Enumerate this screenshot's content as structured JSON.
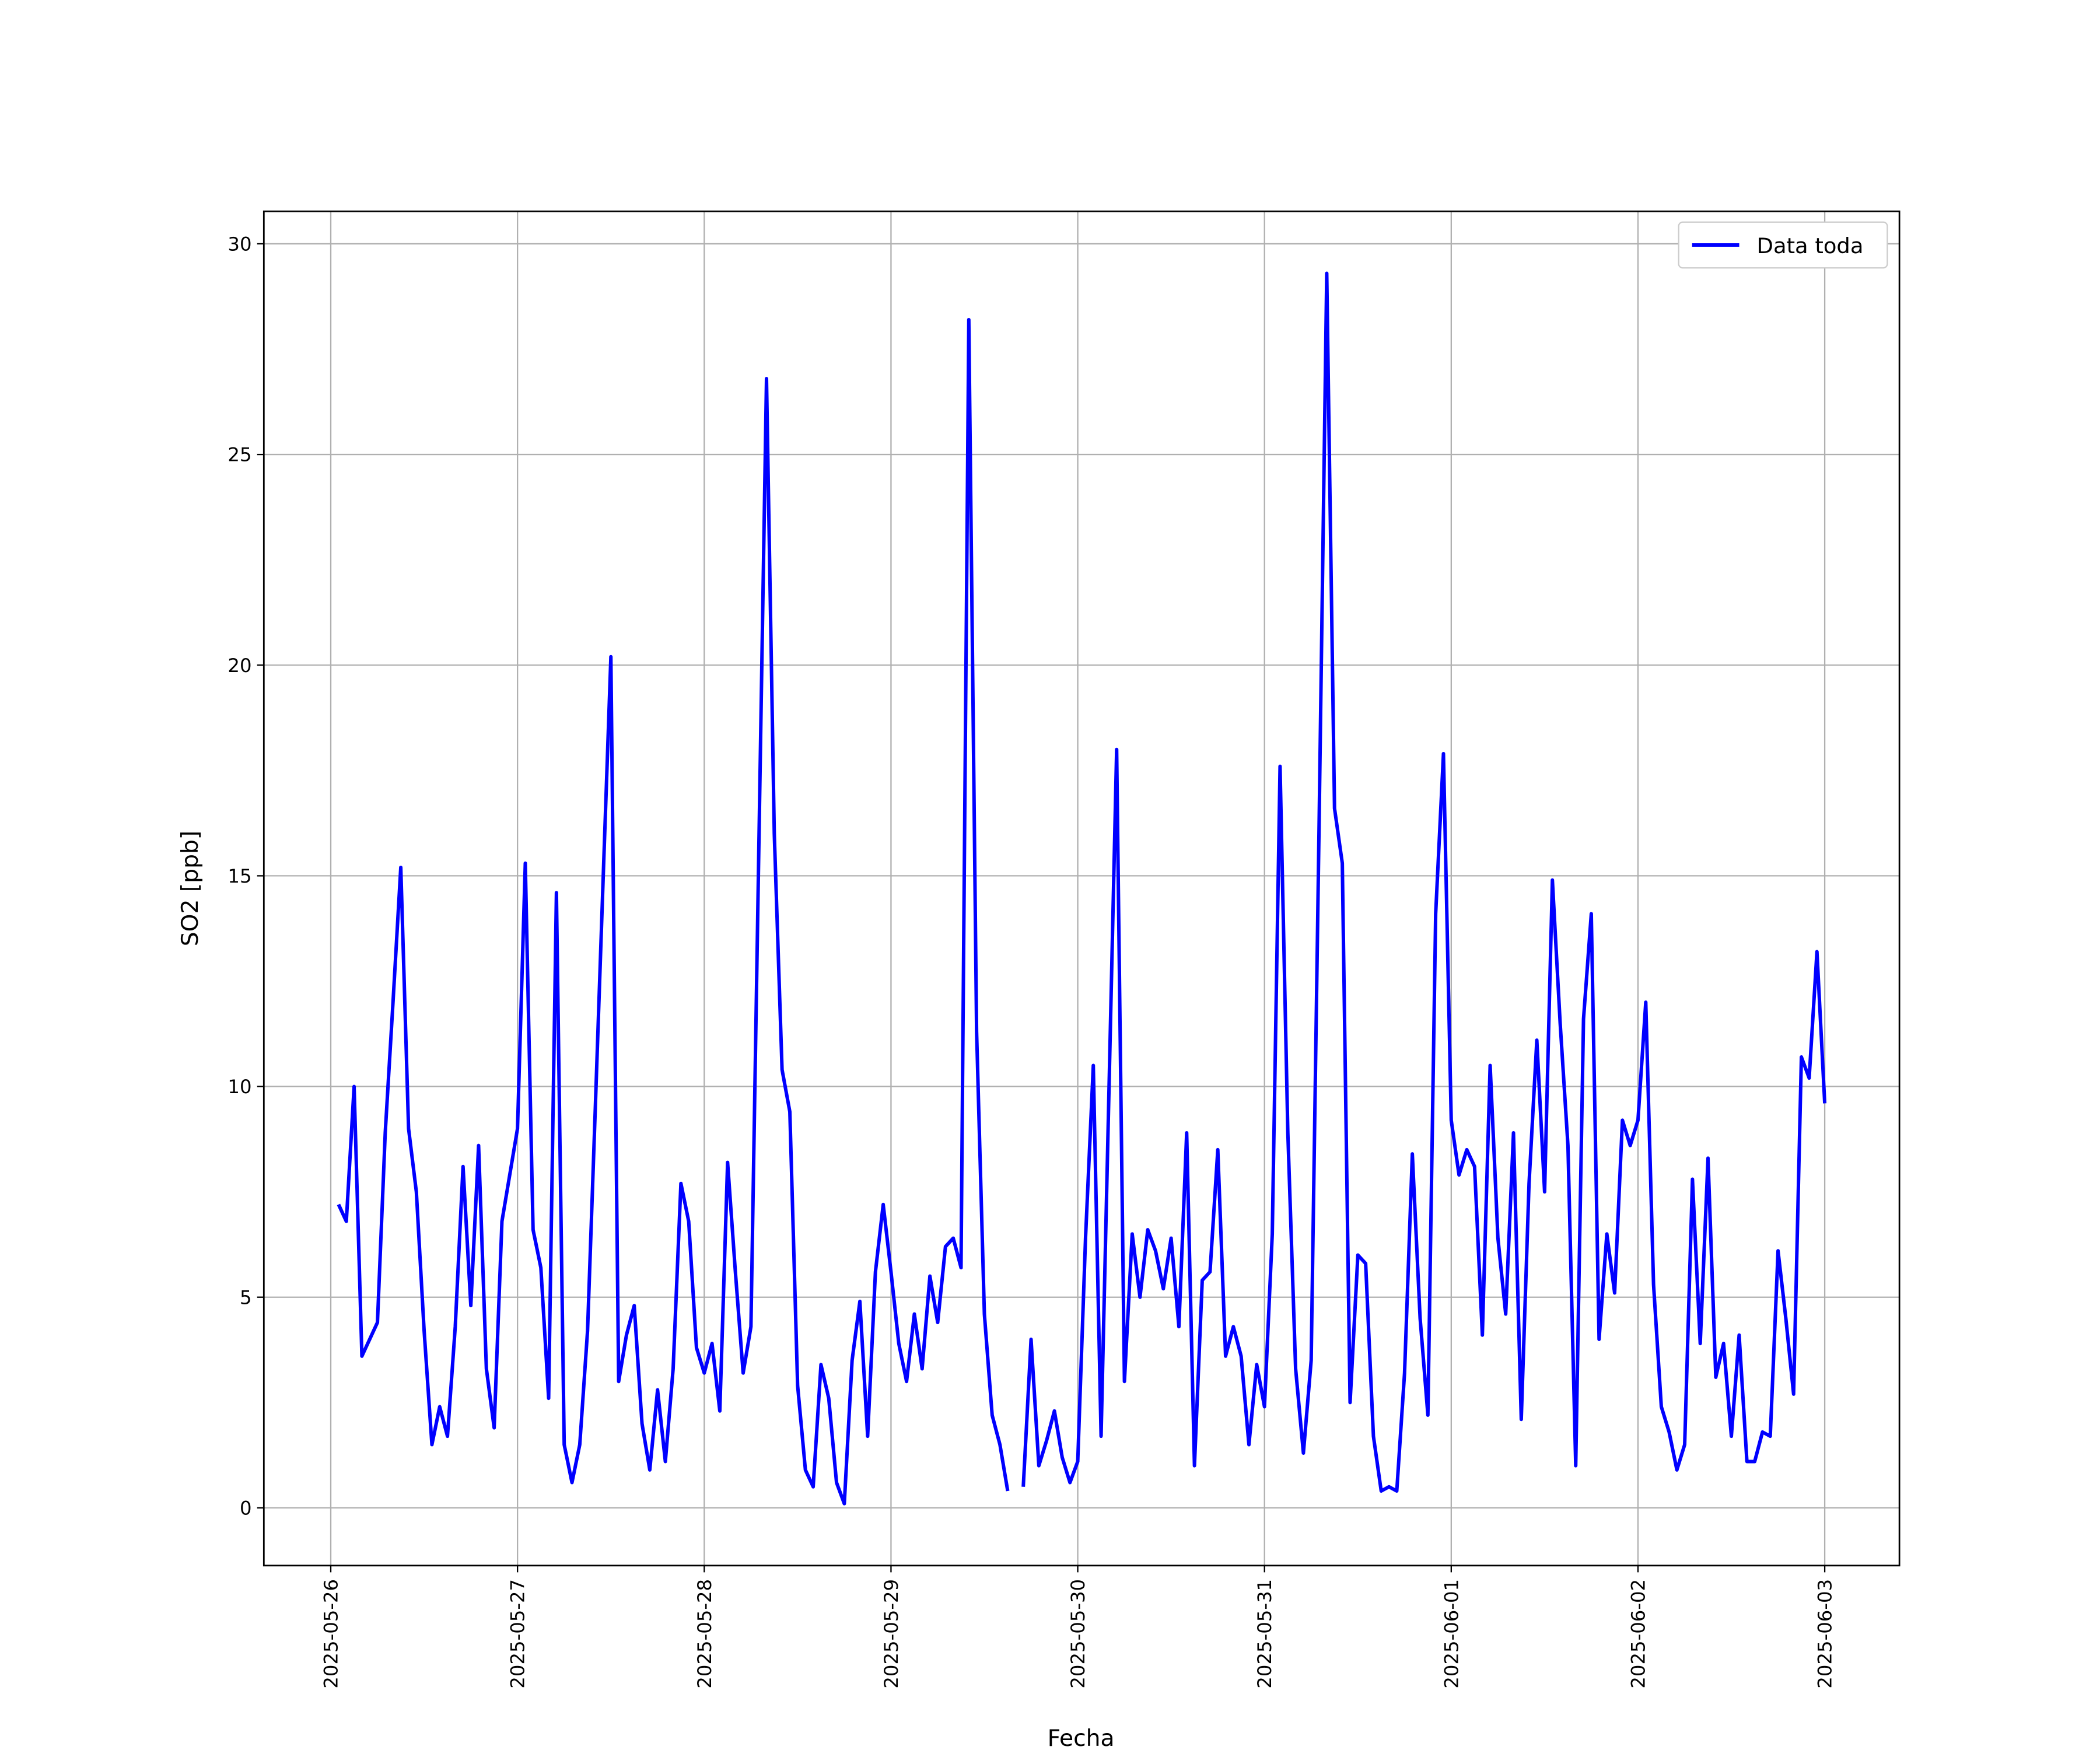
{
  "chart_data": {
    "type": "line",
    "xlabel": "Fecha",
    "ylabel": "SO2 [ppb]",
    "x": [
      1,
      2,
      3,
      4,
      5,
      6,
      7,
      8,
      9,
      10,
      11,
      12,
      13,
      14,
      15,
      16,
      17,
      18,
      19,
      20,
      21,
      22,
      23,
      24,
      25,
      26,
      27,
      28,
      29,
      30,
      31,
      32,
      33,
      34,
      35,
      36,
      37,
      38,
      39,
      40,
      41,
      42,
      43,
      44,
      45,
      46,
      47,
      48,
      49,
      50,
      51,
      52,
      53,
      54,
      55,
      56,
      57,
      58,
      59,
      60,
      61,
      62,
      63,
      64,
      65,
      66,
      67,
      68,
      69,
      70,
      71,
      72,
      73,
      74,
      75,
      76,
      77,
      78,
      79,
      80,
      81,
      82,
      83,
      84,
      85,
      86,
      87,
      88,
      89,
      90,
      91,
      92,
      93,
      94,
      95,
      96,
      97,
      98,
      99,
      100,
      101,
      102,
      103,
      104,
      105,
      106,
      107,
      108,
      109,
      110,
      111,
      112,
      113,
      114,
      115,
      116,
      117,
      118,
      119,
      120,
      121,
      122,
      123,
      124,
      125,
      126,
      127,
      128,
      129,
      130,
      131,
      132,
      133,
      134,
      135,
      136,
      137,
      138,
      139,
      140,
      141,
      142,
      143,
      144,
      145,
      146,
      147,
      148,
      149,
      150,
      151,
      152,
      153,
      154,
      155,
      156,
      157,
      158,
      159,
      160,
      161,
      162,
      163,
      164,
      165,
      166,
      167,
      168,
      169,
      170,
      171,
      172,
      173,
      174,
      175,
      176,
      177,
      178,
      179,
      180,
      181,
      182,
      183,
      184,
      185,
      186,
      187,
      188,
      189,
      190,
      191,
      192
    ],
    "series": [
      {
        "name": "Data toda",
        "color": "#0000ff",
        "values": [
          7.2,
          6.8,
          10.0,
          3.6,
          4.0,
          4.4,
          8.9,
          12.0,
          15.2,
          9.0,
          7.5,
          4.2,
          1.5,
          2.4,
          1.7,
          4.3,
          8.1,
          4.8,
          8.6,
          3.3,
          1.9,
          6.8,
          7.9,
          9.0,
          15.3,
          6.6,
          5.7,
          2.6,
          14.6,
          1.5,
          0.6,
          1.5,
          4.2,
          9.5,
          14.9,
          20.2,
          3.0,
          4.1,
          4.8,
          2.0,
          0.9,
          2.8,
          1.1,
          3.3,
          7.7,
          6.8,
          3.8,
          3.2,
          3.9,
          2.3,
          8.2,
          5.6,
          3.2,
          4.3,
          15.5,
          26.8,
          16.0,
          10.4,
          9.4,
          2.9,
          0.9,
          0.5,
          3.4,
          2.6,
          0.6,
          0.1,
          3.5,
          4.9,
          1.7,
          5.6,
          7.2,
          5.6,
          3.9,
          3.0,
          4.6,
          3.3,
          5.5,
          4.4,
          6.2,
          6.4,
          5.7,
          28.2,
          11.3,
          4.6,
          2.2,
          1.5,
          0.4,
          null,
          0.5,
          4.0,
          1.0,
          1.6,
          2.3,
          1.2,
          0.6,
          1.1,
          6.4,
          10.5,
          1.7,
          9.8,
          18.0,
          3.0,
          6.5,
          5.0,
          6.6,
          6.1,
          5.2,
          6.4,
          4.3,
          8.9,
          1.0,
          5.4,
          5.6,
          8.5,
          3.6,
          4.3,
          3.6,
          1.5,
          3.4,
          2.4,
          6.5,
          17.6,
          8.9,
          3.3,
          1.3,
          3.5,
          16.0,
          29.3,
          16.6,
          15.3,
          2.5,
          6.0,
          5.8,
          1.7,
          0.4,
          0.5,
          0.4,
          3.2,
          8.4,
          4.5,
          2.2,
          14.1,
          17.9,
          9.2,
          7.9,
          8.5,
          8.1,
          4.1,
          10.5,
          6.4,
          4.6,
          8.9,
          2.1,
          7.7,
          11.1,
          7.5,
          14.9,
          11.5,
          8.6,
          1.0,
          11.6,
          14.1,
          4.0,
          6.5,
          5.1,
          9.2,
          8.6,
          9.2,
          12.0,
          5.3,
          2.4,
          1.8,
          0.9,
          1.5,
          7.8,
          3.9,
          8.3,
          3.1,
          3.9,
          1.7,
          4.1,
          1.1,
          1.1,
          1.8,
          1.7,
          6.1,
          4.5,
          2.7,
          10.7,
          10.2,
          13.2,
          9.6
        ]
      }
    ],
    "xlim": [
      -8.6,
      201.6
    ],
    "xticks": [
      {
        "value": 0,
        "label": "2025-05-26"
      },
      {
        "value": 24,
        "label": "2025-05-27"
      },
      {
        "value": 48,
        "label": "2025-05-28"
      },
      {
        "value": 72,
        "label": "2025-05-29"
      },
      {
        "value": 96,
        "label": "2025-05-30"
      },
      {
        "value": 120,
        "label": "2025-05-31"
      },
      {
        "value": 144,
        "label": "2025-06-01"
      },
      {
        "value": 168,
        "label": "2025-06-02"
      },
      {
        "value": 192,
        "label": "2025-06-03"
      }
    ],
    "ylim": [
      -1.37,
      30.77
    ],
    "yticks": [
      0,
      5,
      10,
      15,
      20,
      25,
      30
    ],
    "grid": true,
    "legend": "upper right"
  }
}
